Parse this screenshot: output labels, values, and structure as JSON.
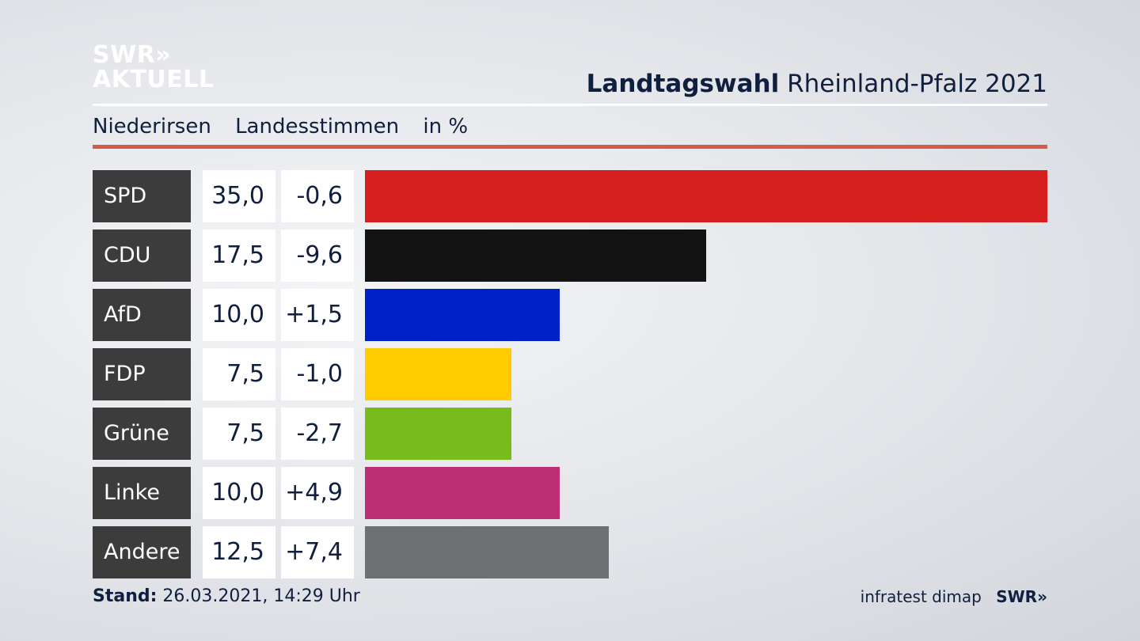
{
  "logo": {
    "line1": "SWR»",
    "line2": "AKTUELL"
  },
  "header": {
    "title_bold": "Landtagswahl",
    "title_rest": "Rheinland-Pfalz 2021"
  },
  "subline": {
    "place": "Niederirsen",
    "kind": "Landesstimmen",
    "unit": "in %"
  },
  "colors": {
    "rule_red": "#d45a4a",
    "label_bg": "#3c3c3c"
  },
  "chart_data": {
    "type": "bar",
    "orientation": "horizontal",
    "categories": [
      "SPD",
      "CDU",
      "AfD",
      "FDP",
      "Grüne",
      "Linke",
      "Andere"
    ],
    "values": [
      35.0,
      17.5,
      10.0,
      7.5,
      7.5,
      10.0,
      12.5
    ],
    "values_label": [
      "35,0",
      "17,5",
      "10,0",
      "7,5",
      "7,5",
      "10,0",
      "12,5"
    ],
    "changes_label": [
      "-0,6",
      "-9,6",
      "+1,5",
      "-1,0",
      "-2,7",
      "+4,9",
      "+7,4"
    ],
    "colors": [
      "#d62020",
      "#131313",
      "#0021c8",
      "#ffcc00",
      "#78bc1c",
      "#bd2f74",
      "#6f7072"
    ],
    "unit": "in %"
  },
  "footer": {
    "stand_label": "Stand:",
    "stand_value": "26.03.2021, 14:29 Uhr",
    "source": "infratest dimap",
    "brand": "SWR»"
  }
}
